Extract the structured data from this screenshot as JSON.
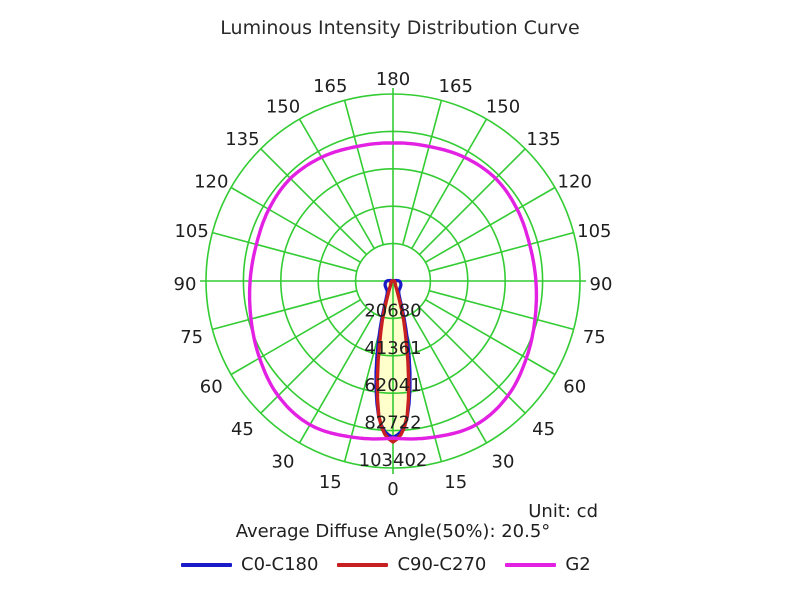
{
  "title": "Luminous Intensity Distribution Curve",
  "unit_label": "Unit: cd",
  "avg_label": "Average Diffuse Angle(50%): 20.5°",
  "legend": [
    {
      "label": "C0-C180",
      "color": "#1a1ac8"
    },
    {
      "label": "C90-C270",
      "color": "#c82020"
    },
    {
      "label": "G2",
      "color": "#e321e3"
    }
  ],
  "colors": {
    "grid": "#33cc33",
    "text": "#1f1f1f",
    "beam_fill": "#ffffcc",
    "background": "#ffffff"
  },
  "chart_data": {
    "type": "line",
    "subtype": "polar-intensity-distribution",
    "angle_unit": "degrees (0 = bottom/nadir, 180 = top)",
    "angle_ticks": [
      0,
      15,
      30,
      45,
      60,
      75,
      90,
      105,
      120,
      135,
      150,
      165,
      180
    ],
    "ring_values": [
      20680,
      41361,
      62041,
      82722,
      103402
    ],
    "rmax": 103402,
    "grid": true,
    "legend_position": "bottom",
    "series": [
      {
        "name": "C0-C180",
        "color": "#1a1ac8",
        "points": [
          [
            0,
            86500
          ],
          [
            3,
            83500
          ],
          [
            6,
            75500
          ],
          [
            9,
            60000
          ],
          [
            12,
            43000
          ],
          [
            15,
            28000
          ],
          [
            18,
            17000
          ],
          [
            21,
            11000
          ],
          [
            25,
            7800
          ],
          [
            30,
            6400
          ],
          [
            40,
            5700
          ],
          [
            50,
            5300
          ],
          [
            60,
            5000
          ],
          [
            70,
            4600
          ],
          [
            80,
            4100
          ],
          [
            90,
            3400
          ],
          [
            100,
            1600
          ],
          [
            110,
            0
          ],
          [
            140,
            0
          ],
          [
            180,
            0
          ]
        ]
      },
      {
        "name": "C90-C270",
        "color": "#c82020",
        "points": [
          [
            0,
            89000
          ],
          [
            3,
            85000
          ],
          [
            6,
            75000
          ],
          [
            9,
            55000
          ],
          [
            12,
            36000
          ],
          [
            15,
            23000
          ],
          [
            18,
            12500
          ],
          [
            21,
            7200
          ],
          [
            25,
            4200
          ],
          [
            30,
            2800
          ],
          [
            40,
            1900
          ],
          [
            50,
            1500
          ],
          [
            60,
            1200
          ],
          [
            75,
            900
          ],
          [
            90,
            650
          ],
          [
            100,
            300
          ],
          [
            110,
            0
          ],
          [
            140,
            0
          ],
          [
            180,
            0
          ]
        ]
      },
      {
        "name": "G2",
        "color": "#e321e3",
        "points": [
          [
            0,
            86800
          ],
          [
            15,
            89300
          ],
          [
            30,
            91800
          ],
          [
            45,
            89800
          ],
          [
            60,
            85200
          ],
          [
            75,
            81300
          ],
          [
            90,
            79000
          ],
          [
            105,
            78200
          ],
          [
            120,
            79300
          ],
          [
            135,
            80200
          ],
          [
            150,
            79000
          ],
          [
            165,
            77000
          ],
          [
            180,
            76300
          ]
        ]
      }
    ]
  }
}
